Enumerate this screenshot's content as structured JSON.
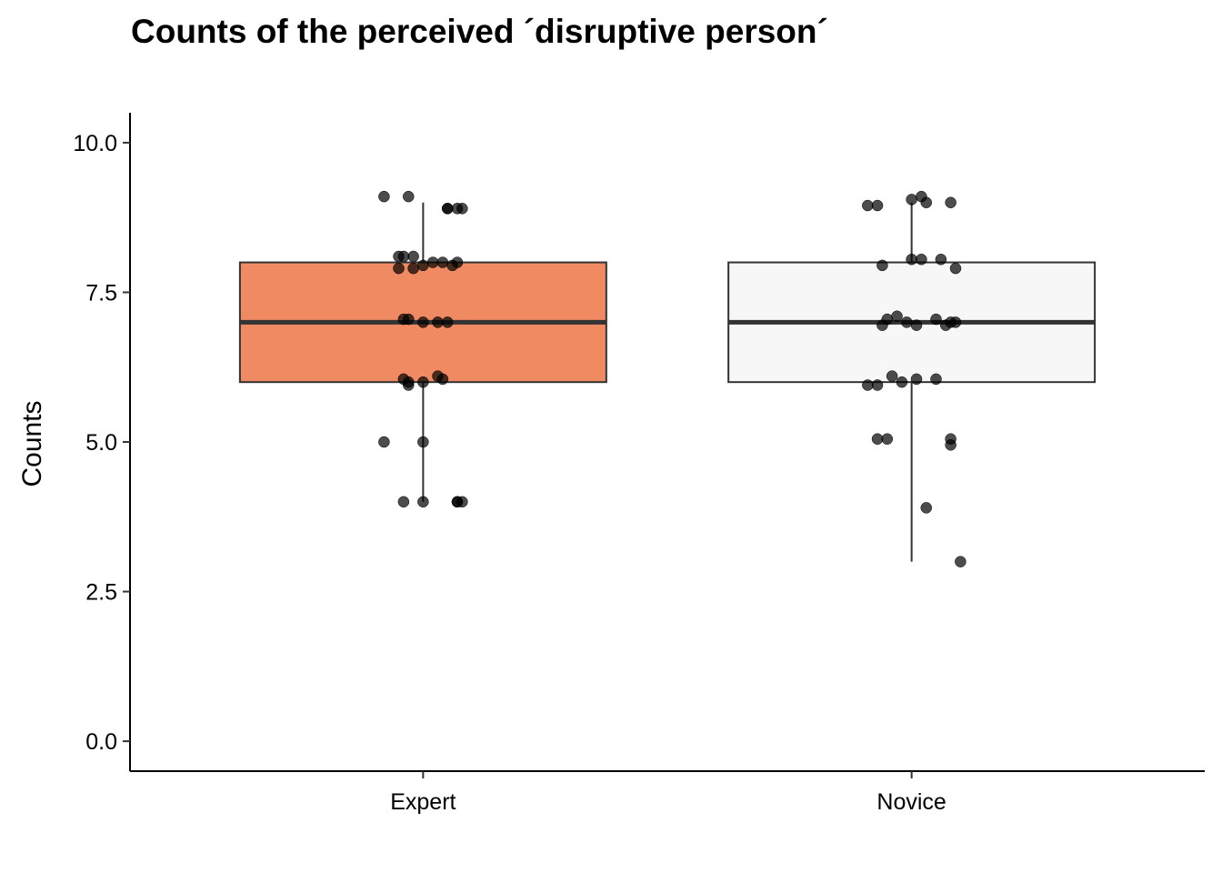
{
  "chart_data": {
    "type": "boxplot",
    "title": "Counts of the perceived ´disruptive person´",
    "xlabel": "",
    "ylabel": "Counts",
    "ylim": [
      -0.5,
      10.5
    ],
    "y_ticks": [
      "0.0",
      "2.5",
      "5.0",
      "7.5",
      "10.0"
    ],
    "categories": [
      "Expert",
      "Novice"
    ],
    "grid": false,
    "legend": "none",
    "boxes": [
      {
        "category": "Expert",
        "whisker_low": 4,
        "q1": 6,
        "median": 7,
        "q3": 8,
        "whisker_high": 9,
        "fill": "#EF8A62"
      },
      {
        "category": "Novice",
        "whisker_low": 3,
        "q1": 6,
        "median": 7,
        "q3": 8,
        "whisker_high": 9,
        "fill": "#F7F7F7"
      }
    ],
    "points": [
      {
        "category": "Expert",
        "jitter": [
          -0.08,
          -0.03,
          0.05,
          0.08,
          0.05,
          0.07,
          -0.05,
          -0.04,
          -0.02,
          -0.02,
          0.02,
          0.04,
          0.07,
          0.06,
          0.0,
          -0.05,
          -0.03,
          -0.04,
          0.0,
          0.03,
          0.05,
          -0.04,
          -0.03,
          -0.03,
          0.0,
          0.03,
          0.04,
          -0.08,
          0.0,
          0.07,
          -0.04,
          0.0,
          0.07,
          0.08
        ],
        "y": [
          9.1,
          9.1,
          8.9,
          8.9,
          8.9,
          8.9,
          8.1,
          8.1,
          8.1,
          7.9,
          8.0,
          8.0,
          8.0,
          7.95,
          7.95,
          7.9,
          7.05,
          7.05,
          7.0,
          7.0,
          7.0,
          6.05,
          6.0,
          5.95,
          6.0,
          6.1,
          6.05,
          5.0,
          5.0,
          4.0,
          4.0,
          4.0,
          4.0,
          4.0
        ]
      },
      {
        "category": "Novice",
        "jitter": [
          -0.09,
          -0.07,
          0.0,
          0.02,
          0.03,
          0.08,
          -0.06,
          0.0,
          0.02,
          0.06,
          0.09,
          -0.06,
          -0.05,
          -0.03,
          -0.01,
          0.01,
          0.05,
          0.07,
          0.08,
          0.09,
          -0.09,
          -0.07,
          -0.04,
          -0.02,
          0.01,
          0.05,
          -0.07,
          -0.05,
          0.08,
          0.08,
          0.03,
          0.1
        ],
        "y": [
          8.95,
          8.95,
          9.05,
          9.1,
          9.0,
          9.0,
          7.95,
          8.05,
          8.05,
          8.05,
          7.9,
          6.95,
          7.05,
          7.1,
          7.0,
          6.95,
          7.05,
          6.95,
          7.0,
          7.0,
          5.95,
          5.95,
          6.1,
          6.0,
          6.05,
          6.05,
          5.05,
          5.05,
          5.05,
          4.95,
          3.9,
          3.0
        ]
      }
    ],
    "colors": {
      "expert_fill": "#EF8A62",
      "novice_fill": "#F7F7F7",
      "outline": "#333333",
      "point": "#000000"
    }
  }
}
